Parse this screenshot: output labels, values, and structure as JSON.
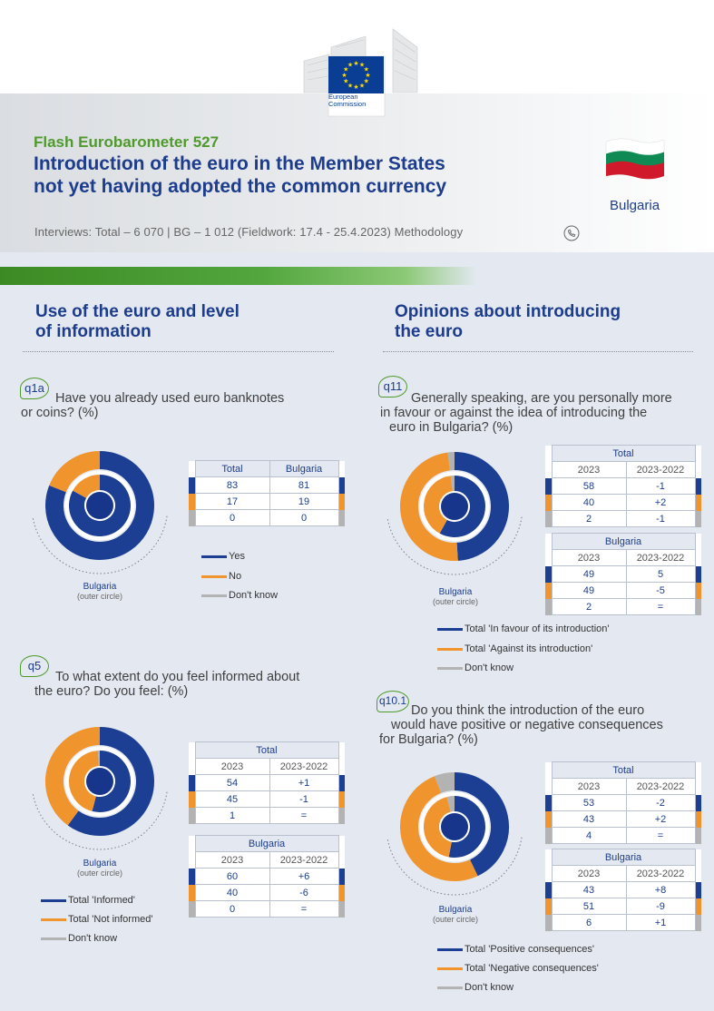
{
  "header": {
    "logo_line1": "European",
    "logo_line2": "Commission",
    "survey_name": "Flash Eurobarometer 527",
    "title_line1": "Introduction of the euro in the Member States",
    "title_line2": "not yet having adopted the common currency",
    "country": "Bulgaria",
    "meta": "Interviews: Total – 6 070 | BG – 1 012   (Fieldwork: 17.4 - 25.4.2023)   Methodology"
  },
  "colors": {
    "blue": "#1c3f94",
    "orange": "#f0942d",
    "grey": "#b3b3b3",
    "green": "#4f9a2d"
  },
  "sections": {
    "left_title_1": "Use of the euro and level",
    "left_title_2": "of information",
    "right_title_1": "Opinions about introducing",
    "right_title_2": "the euro"
  },
  "q1a": {
    "badge": "q1a",
    "text_1": "Have you already used euro banknotes",
    "text_2": "or coins? (%)",
    "headers": [
      "Total",
      "Bulgaria"
    ],
    "rows": [
      [
        "83",
        "81"
      ],
      [
        "17",
        "19"
      ],
      [
        "0",
        "0"
      ]
    ],
    "legend": [
      "Yes",
      "No",
      "Don't know"
    ],
    "caption": "Bulgaria",
    "caption_sub": "(outer circle)",
    "chart": {
      "outer": [
        81,
        19,
        0
      ],
      "inner": [
        83,
        17,
        0
      ]
    }
  },
  "q5": {
    "badge": "q5",
    "text_1": "To what extent do you feel informed about",
    "text_2": "the euro? Do you feel: (%)",
    "total_label": "Total",
    "country_label": "Bulgaria",
    "col1": "2023",
    "col2": "2023-2022",
    "total_rows": [
      [
        "54",
        "+1"
      ],
      [
        "45",
        "-1"
      ],
      [
        "1",
        "="
      ]
    ],
    "country_rows": [
      [
        "60",
        "+6"
      ],
      [
        "40",
        "-6"
      ],
      [
        "0",
        "="
      ]
    ],
    "legend": [
      "Total 'Informed'",
      "Total 'Not informed'",
      "Don't know"
    ],
    "caption": "Bulgaria",
    "caption_sub": "(outer circle)",
    "chart": {
      "outer": [
        60,
        40,
        0
      ],
      "inner": [
        54,
        45,
        1
      ]
    }
  },
  "q11": {
    "badge": "q11",
    "text_1": "Generally speaking, are you personally more",
    "text_2": "in favour or against the idea of introducing the",
    "text_3": "euro in Bulgaria? (%)",
    "total_label": "Total",
    "country_label": "Bulgaria",
    "col1": "2023",
    "col2": "2023-2022",
    "total_rows": [
      [
        "58",
        "-1"
      ],
      [
        "40",
        "+2"
      ],
      [
        "2",
        "-1"
      ]
    ],
    "country_rows": [
      [
        "49",
        "5"
      ],
      [
        "49",
        "-5"
      ],
      [
        "2",
        "="
      ]
    ],
    "legend": [
      "Total 'In favour of its introduction'",
      "Total 'Against its introduction'",
      "Don't know"
    ],
    "caption": "Bulgaria",
    "caption_sub": "(outer circle)",
    "chart": {
      "outer": [
        49,
        49,
        2
      ],
      "inner": [
        58,
        40,
        2
      ]
    }
  },
  "q10_1": {
    "badge": "q10.1",
    "text_1": "Do you think the introduction of the  euro",
    "text_2": "would have positive or negative consequences",
    "text_3": "for Bulgaria? (%)",
    "total_label": "Total",
    "country_label": "Bulgaria",
    "col1": "2023",
    "col2": "2023-2022",
    "total_rows": [
      [
        "53",
        "-2"
      ],
      [
        "43",
        "+2"
      ],
      [
        "4",
        "="
      ]
    ],
    "country_rows": [
      [
        "43",
        "+8"
      ],
      [
        "51",
        "-9"
      ],
      [
        "6",
        "+1"
      ]
    ],
    "legend": [
      "Total 'Positive consequences'",
      "Total 'Negative consequences'",
      "Don't know"
    ],
    "caption": "Bulgaria",
    "caption_sub": "(outer circle)",
    "chart": {
      "outer": [
        43,
        51,
        6
      ],
      "inner": [
        53,
        43,
        4
      ]
    }
  }
}
